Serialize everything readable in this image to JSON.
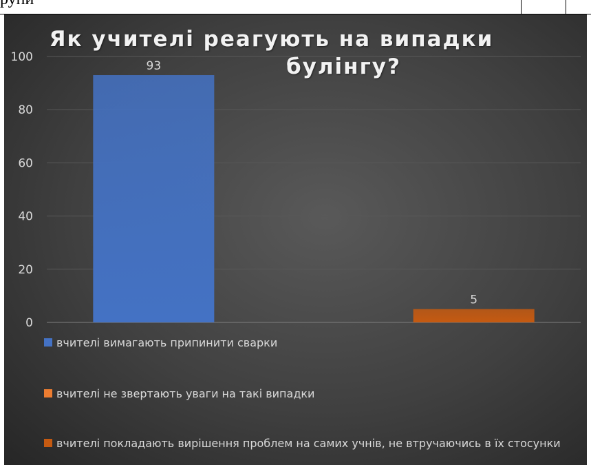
{
  "document_fragment": {
    "text": "рупи",
    "cell_dividers": [
      757,
      822
    ]
  },
  "chart_data": {
    "type": "bar",
    "title_lines": [
      "Як учителі реагують на випадки",
      "булінгу?"
    ],
    "ylim": [
      0,
      100
    ],
    "yticks": [
      0,
      20,
      40,
      60,
      80,
      100
    ],
    "grid": true,
    "series": [
      {
        "name": "вчителі вимагають припинити сварки",
        "value": 93,
        "color": "#4472C4"
      },
      {
        "name": "вчителі не звертають уваги на такі випадки",
        "value": null,
        "color": "#ED7D31"
      },
      {
        "name": "вчителі покладають вирішення проблем на самих учнів, не втручаючись в їх стосунки",
        "value": 5,
        "color": "#C55A11"
      }
    ],
    "legend_position": "bottom",
    "colors": {
      "text": "#d9d9d9",
      "grid": "#595959",
      "background": "#404040"
    }
  }
}
